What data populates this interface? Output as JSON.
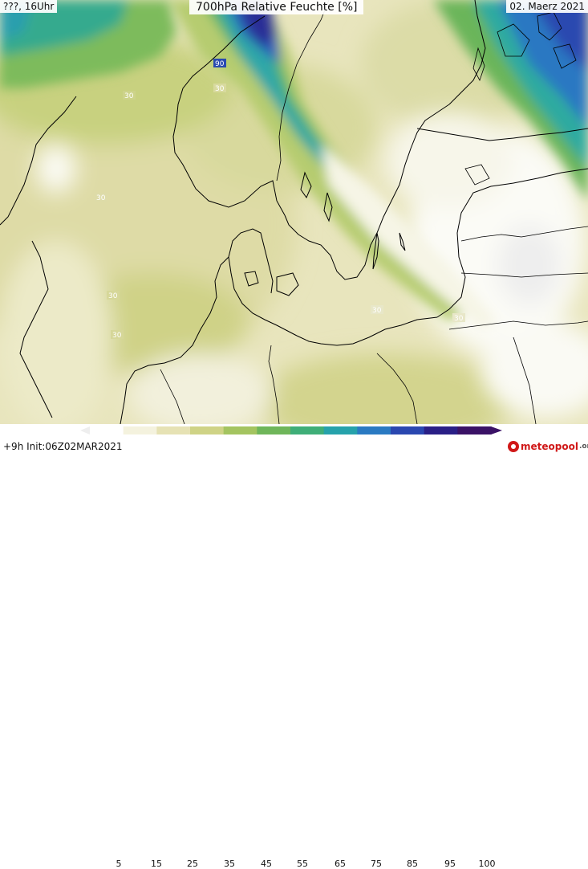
{
  "header": {
    "left": "???, 16Uhr",
    "title": "700hPa Relative Feuchte [%]",
    "date": "02. Maerz 2021"
  },
  "footer": {
    "run": "+9h  Init:06Z02MAR2021",
    "brand": "meteopool",
    "brand_tld": ".org"
  },
  "legend": {
    "ticks": [
      "5",
      "15",
      "25",
      "35",
      "45",
      "55",
      "65",
      "75",
      "85",
      "95",
      "100"
    ],
    "colors": [
      "#ffffff",
      "#f4f2de",
      "#e6e2b4",
      "#cfd386",
      "#a4c460",
      "#6fb65a",
      "#3fae78",
      "#26a2ab",
      "#2a7ac2",
      "#2a47b0",
      "#2a1f86",
      "#3a1266"
    ]
  },
  "contour_labels": [
    "30",
    "30",
    "30",
    "30",
    "30",
    "30",
    "30",
    "90"
  ],
  "colors": {
    "land_outline": "#000000",
    "contour_label": "#ffffff"
  }
}
